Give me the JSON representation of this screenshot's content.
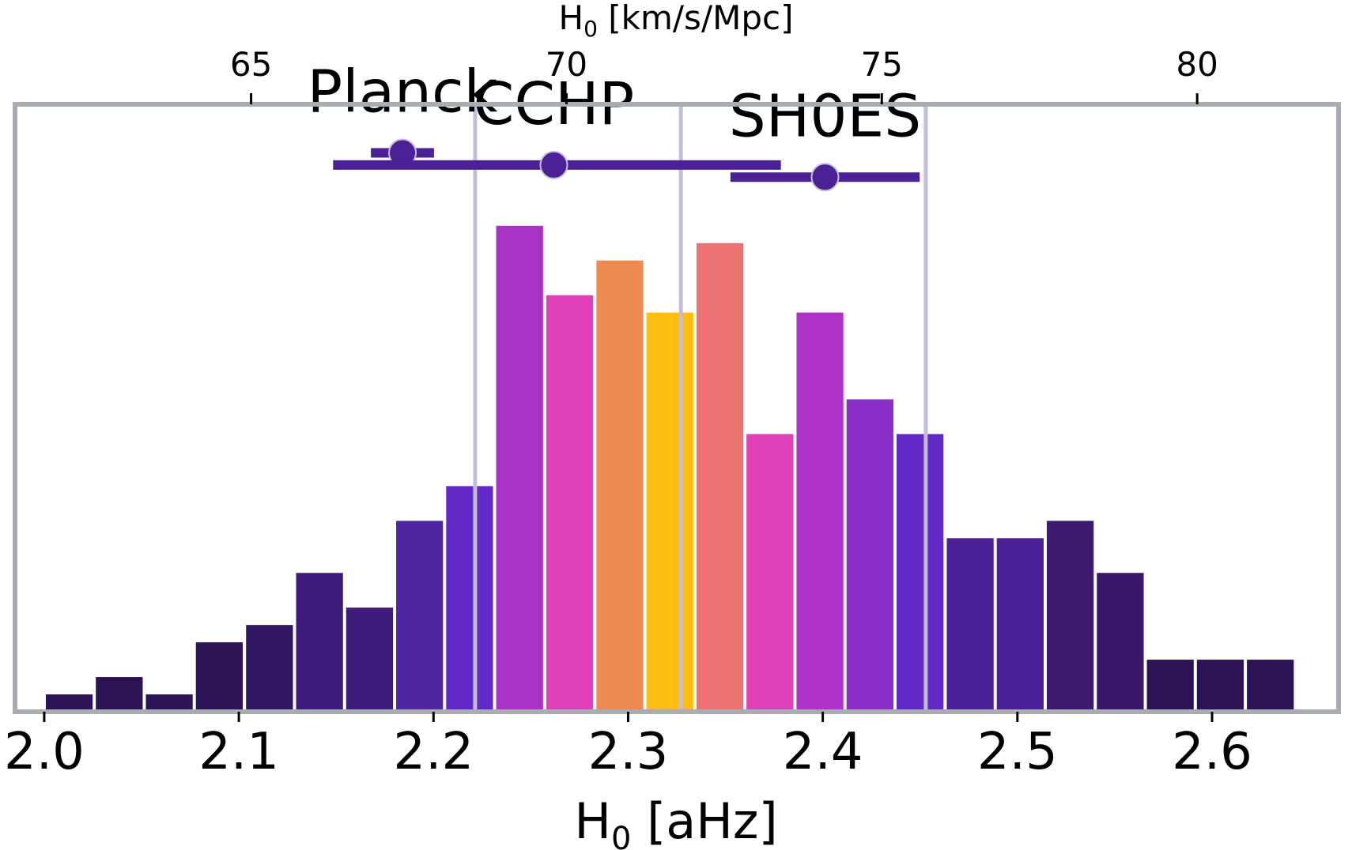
{
  "chart_data": {
    "type": "bar",
    "xlabel": "H",
    "xlabel_sub": "0",
    "xlabel_rest": " [aHz]",
    "top_xlabel": "H",
    "top_xlabel_sub": "0",
    "top_xlabel_rest": " [km/s/Mpc]",
    "xlim": [
      1.985,
      2.665
    ],
    "x_ticks": [
      2.0,
      2.1,
      2.2,
      2.3,
      2.4,
      2.5,
      2.6
    ],
    "x_tick_labels": [
      "2.0",
      "2.1",
      "2.2",
      "2.3",
      "2.4",
      "2.5",
      "2.6"
    ],
    "top_ticks": [
      65,
      70,
      75,
      80
    ],
    "top_tick_labels": [
      "65",
      "70",
      "75",
      "80"
    ],
    "top_axis_conversion": "H0[km/s/Mpc] = 30.86 * H0[aHz]",
    "bin_width": 0.0257,
    "bins": [
      {
        "x": 2.0,
        "count": 1,
        "color": "#2b1355"
      },
      {
        "x": 2.0257,
        "count": 2,
        "color": "#2b1355"
      },
      {
        "x": 2.0514,
        "count": 1,
        "color": "#2b1355"
      },
      {
        "x": 2.0771,
        "count": 4,
        "color": "#2b1355"
      },
      {
        "x": 2.1029,
        "count": 5,
        "color": "#2e1660"
      },
      {
        "x": 2.1286,
        "count": 8,
        "color": "#3d1a7c"
      },
      {
        "x": 2.1543,
        "count": 6,
        "color": "#3d1a7c"
      },
      {
        "x": 2.18,
        "count": 11,
        "color": "#5226a3"
      },
      {
        "x": 2.2057,
        "count": 13,
        "color": "#6128c6"
      },
      {
        "x": 2.2314,
        "count": 28,
        "color": "#a832c4"
      },
      {
        "x": 2.2571,
        "count": 24,
        "color": "#e040b8"
      },
      {
        "x": 2.2829,
        "count": 26,
        "color": "#ef8a52"
      },
      {
        "x": 2.3086,
        "count": 23,
        "color": "#fdbe10"
      },
      {
        "x": 2.3343,
        "count": 27,
        "color": "#eb7373"
      },
      {
        "x": 2.36,
        "count": 16,
        "color": "#e040b8"
      },
      {
        "x": 2.3857,
        "count": 23,
        "color": "#ad33c8"
      },
      {
        "x": 2.4114,
        "count": 18,
        "color": "#8a2ec5"
      },
      {
        "x": 2.4371,
        "count": 16,
        "color": "#6128c6"
      },
      {
        "x": 2.4629,
        "count": 10,
        "color": "#4b2096"
      },
      {
        "x": 2.4886,
        "count": 10,
        "color": "#4b2096"
      },
      {
        "x": 2.5143,
        "count": 11,
        "color": "#3d1a70"
      },
      {
        "x": 2.54,
        "count": 8,
        "color": "#3a1768"
      },
      {
        "x": 2.5657,
        "count": 3,
        "color": "#2b1355"
      },
      {
        "x": 2.5914,
        "count": 3,
        "color": "#2b1355"
      },
      {
        "x": 2.6171,
        "count": 3,
        "color": "#2b1355"
      }
    ],
    "ylim": [
      0,
      35
    ],
    "vlines": [
      2.2214,
      2.3271,
      2.4529
    ],
    "vline_color": "#c5bcdc",
    "measurements": [
      {
        "name": "Planck",
        "value": 67.4,
        "err": [
          0.5,
          0.5
        ],
        "level": 32.2
      },
      {
        "name": "CCHP",
        "value": 69.8,
        "err": [
          3.5,
          3.6
        ],
        "level": 31.5
      },
      {
        "name": "SH0ES",
        "value": 74.1,
        "err": [
          1.5,
          1.5
        ],
        "level": 30.8
      }
    ],
    "measurement_color": "#4b2195",
    "frame_color": "#a9adb1",
    "grid": false
  }
}
